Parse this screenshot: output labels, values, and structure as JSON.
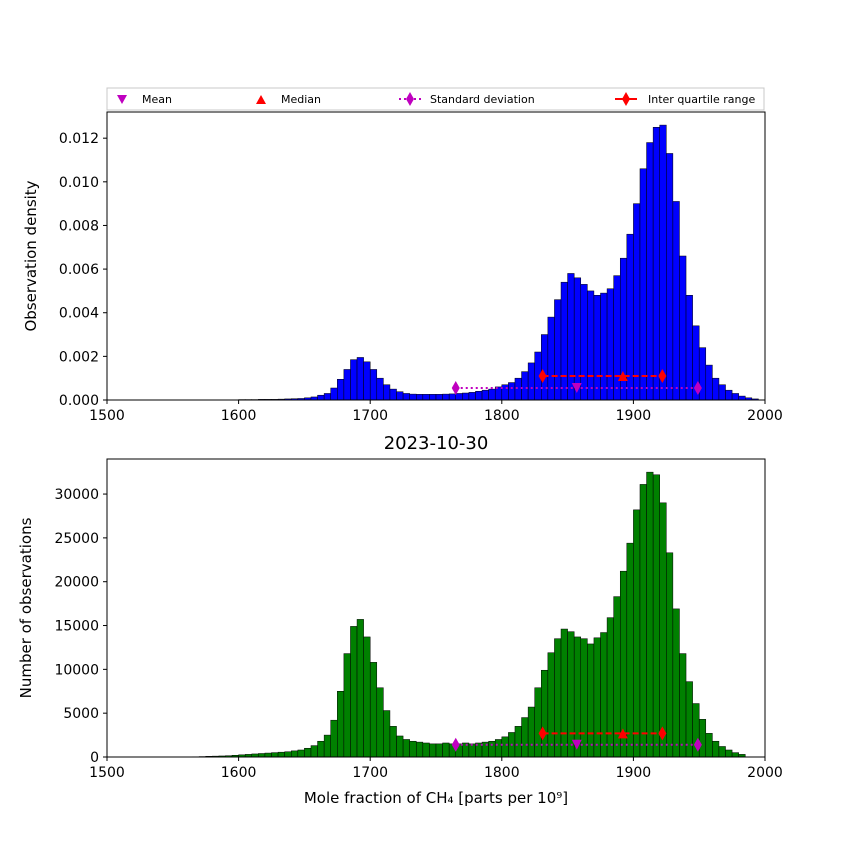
{
  "legend": {
    "mean_label": "Mean",
    "median_label": "Median",
    "std_label": "Standard deviation",
    "iqr_label": "Inter quartile range"
  },
  "colors": {
    "top_bars": "#0000ff",
    "bottom_bars": "#008000",
    "mean_marker": "#bf00bf",
    "std_marker": "#bf00bf",
    "median_marker": "#ff0000",
    "iqr_marker": "#ff0000"
  },
  "chart_data": [
    {
      "type": "bar",
      "title": "",
      "xlabel": "",
      "ylabel": "Observation density",
      "xlim": [
        1500,
        2000
      ],
      "ylim": [
        0,
        0.0132
      ],
      "xticks": [
        "1500",
        "1600",
        "1700",
        "1800",
        "1900",
        "2000"
      ],
      "yticks": [
        "0.000",
        "0.002",
        "0.004",
        "0.006",
        "0.008",
        "0.010",
        "0.012"
      ],
      "ytick_values": [
        0,
        0.002,
        0.004,
        0.006,
        0.008,
        0.01,
        0.012
      ],
      "bin_start": 1600,
      "bin_width": 5,
      "values": [
        2e-05,
        2e-05,
        2e-05,
        3e-05,
        3e-05,
        3e-05,
        4e-05,
        5e-05,
        6e-05,
        7e-05,
        0.0001,
        0.00014,
        0.00022,
        0.0003,
        0.00055,
        0.00095,
        0.0014,
        0.00185,
        0.00195,
        0.00175,
        0.0014,
        0.001,
        0.0007,
        0.0005,
        0.00038,
        0.0003,
        0.00027,
        0.00026,
        0.00026,
        0.00026,
        0.00026,
        0.00027,
        0.00028,
        0.0003,
        0.00032,
        0.00035,
        0.0004,
        0.00045,
        0.0005,
        0.0006,
        0.0007,
        0.0008,
        0.001,
        0.0013,
        0.0017,
        0.0022,
        0.003,
        0.0038,
        0.0046,
        0.0054,
        0.0058,
        0.0056,
        0.0053,
        0.005,
        0.0048,
        0.0049,
        0.0051,
        0.0057,
        0.0065,
        0.0076,
        0.009,
        0.0106,
        0.0118,
        0.0125,
        0.0126,
        0.0113,
        0.0091,
        0.0066,
        0.0048,
        0.0034,
        0.0024,
        0.0016,
        0.001,
        0.0007,
        0.00045,
        0.0003,
        0.00018,
        0.0001,
        5e-05
      ],
      "stats": {
        "mean": 1857,
        "median": 1892,
        "std_low": 1765,
        "std_high": 1949,
        "iqr_low": 1831,
        "iqr_high": 1922,
        "mean_y": 0.00055,
        "std_y": 0.00055,
        "median_y": 0.0011,
        "iqr_y": 0.0011
      }
    },
    {
      "type": "bar",
      "title": "2023-10-30",
      "xlabel": "Mole fraction of CH₄ [parts per 10⁹]",
      "ylabel": "Number of observations",
      "xlim": [
        1500,
        2000
      ],
      "ylim": [
        0,
        34000
      ],
      "xticks": [
        "1500",
        "1600",
        "1700",
        "1800",
        "1900",
        "2000"
      ],
      "yticks": [
        "0",
        "5000",
        "10000",
        "15000",
        "20000",
        "25000",
        "30000"
      ],
      "ytick_values": [
        0,
        5000,
        10000,
        15000,
        20000,
        25000,
        30000
      ],
      "bin_start": 1560,
      "bin_width": 5,
      "values": [
        10,
        30,
        50,
        80,
        100,
        120,
        150,
        200,
        250,
        300,
        350,
        400,
        450,
        500,
        550,
        600,
        700,
        800,
        1000,
        1300,
        1800,
        2500,
        4200,
        7500,
        11800,
        14900,
        15700,
        13700,
        10800,
        7900,
        5300,
        3500,
        2400,
        2000,
        1800,
        1700,
        1600,
        1500,
        1500,
        1600,
        1500,
        1500,
        1600,
        1500,
        1600,
        1700,
        1800,
        2000,
        2300,
        2800,
        3500,
        4500,
        5700,
        7900,
        9900,
        11900,
        13500,
        14600,
        14300,
        13700,
        13500,
        12900,
        13600,
        14200,
        15900,
        18300,
        21200,
        24400,
        28200,
        31100,
        32500,
        32200,
        29000,
        23300,
        16900,
        11800,
        8600,
        6100,
        4300,
        2700,
        1800,
        1200,
        800,
        500,
        300
      ],
      "stats": {
        "mean": 1857,
        "median": 1892,
        "std_low": 1765,
        "std_high": 1949,
        "iqr_low": 1831,
        "iqr_high": 1922,
        "mean_y": 1400,
        "std_y": 1400,
        "median_y": 2700,
        "iqr_y": 2700
      }
    }
  ]
}
